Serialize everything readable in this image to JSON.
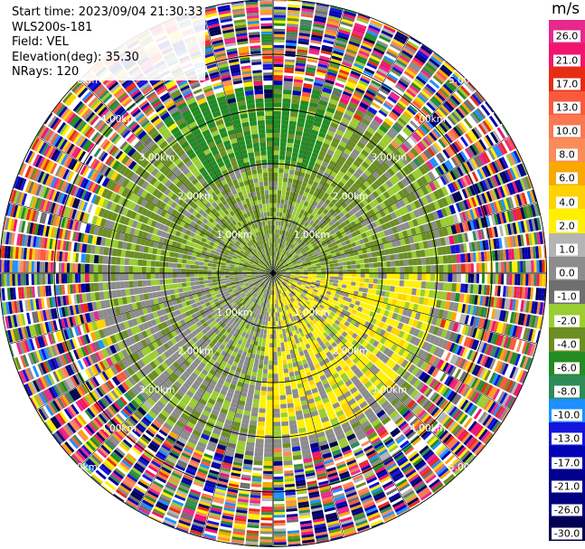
{
  "info": {
    "start_time": "Start time: 2023/09/04 21:30:33",
    "instrument": "WLS200s-181",
    "field": "Field: VEL",
    "elevation": "Elevation(deg): 35.30",
    "nrays": "NRays: 120"
  },
  "colorbar": {
    "unit": "m/s",
    "levels": [
      {
        "label": "26.0",
        "color": "#e8288c"
      },
      {
        "label": "21.0",
        "color": "#f0146e"
      },
      {
        "label": "17.0",
        "color": "#e62d14"
      },
      {
        "label": "13.0",
        "color": "#fa5a3c"
      },
      {
        "label": "10.0",
        "color": "#fa7850"
      },
      {
        "label": "8.0",
        "color": "#fa8c5a"
      },
      {
        "label": "6.0",
        "color": "#f8a800"
      },
      {
        "label": "4.0",
        "color": "#ffd200"
      },
      {
        "label": "2.0",
        "color": "#fff000"
      },
      {
        "label": "1.0",
        "color": "#b4b4b4"
      },
      {
        "label": "0.0",
        "color": "#8c8c8c"
      },
      {
        "label": "-1.0",
        "color": "#6e6e6e"
      },
      {
        "label": "-2.0",
        "color": "#9acd32"
      },
      {
        "label": "-4.0",
        "color": "#6b8e23"
      },
      {
        "label": "-6.0",
        "color": "#228b22"
      },
      {
        "label": "-8.0",
        "color": "#2e8b57"
      },
      {
        "label": "-10.0",
        "color": "#1e90ff"
      },
      {
        "label": "-13.0",
        "color": "#1414dc"
      },
      {
        "label": "-17.0",
        "color": "#0000b4"
      },
      {
        "label": "-21.0",
        "color": "#00008c"
      },
      {
        "label": "-26.0",
        "color": "#000080"
      },
      {
        "label": "-30.0",
        "color": "#000050"
      }
    ]
  },
  "range_rings": {
    "labels": [
      "1.00km",
      "2.00km",
      "3.00km",
      "4.00km",
      "5.00km"
    ]
  },
  "chart_data": {
    "type": "heatmap",
    "projection": "polar PPI",
    "field": "VEL",
    "units": "m/s",
    "nrays": 120,
    "elevation_deg": 35.3,
    "rings_km": [
      1,
      2,
      3,
      4,
      5
    ],
    "range_bands": [
      {
        "r0_km": 0.0,
        "r1_km": 1.0,
        "dominant": [
          "-2.0",
          "0.0",
          "2.0"
        ],
        "note": "grey/green near center with yellow gates"
      },
      {
        "r0_km": 1.0,
        "r1_km": 2.0,
        "dominant": [
          "-2.0",
          "-4.0",
          "0.0",
          "2.0"
        ]
      },
      {
        "r0_km": 2.0,
        "r1_km": 3.0,
        "dominant": [
          "-4.0",
          "0.0",
          "2.0"
        ],
        "note": "green to north, yellow to south-east"
      },
      {
        "r0_km": 3.0,
        "r1_km": 3.5,
        "dominant": [
          "-4.0",
          "0.0"
        ]
      },
      {
        "r0_km": 3.5,
        "r1_km": 5.5,
        "dominant": "noise (all levels)"
      }
    ]
  }
}
